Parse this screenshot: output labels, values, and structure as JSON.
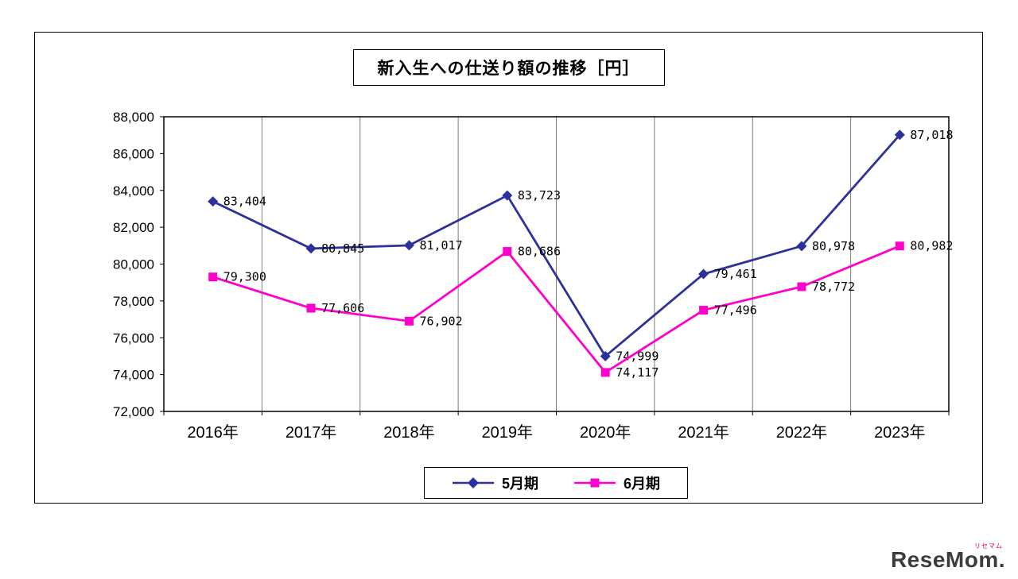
{
  "chart_data": {
    "type": "line",
    "title": "新入生への仕送り額の推移［円］",
    "categories": [
      "2016年",
      "2017年",
      "2018年",
      "2019年",
      "2020年",
      "2021年",
      "2022年",
      "2023年"
    ],
    "series": [
      {
        "name": "5月期",
        "marker": "diamond",
        "color": "#2d319c",
        "values": [
          83404,
          80845,
          81017,
          83723,
          74999,
          79461,
          80978,
          87018
        ]
      },
      {
        "name": "6月期",
        "marker": "square",
        "color": "#ff00cc",
        "values": [
          79300,
          77606,
          76902,
          80686,
          74117,
          77496,
          78772,
          80982
        ]
      }
    ],
    "xlabel": "",
    "ylabel": "",
    "ylim": [
      72000,
      88000
    ],
    "ytick_step": 2000,
    "ytick_labels": [
      "72,000",
      "74,000",
      "76,000",
      "78,000",
      "80,000",
      "82,000",
      "84,000",
      "86,000",
      "88,000"
    ],
    "grid": "vertical",
    "legend_position": "bottom",
    "data_labels": true
  },
  "watermark": {
    "text": "ReseMom.",
    "ruby": "リセマム"
  }
}
